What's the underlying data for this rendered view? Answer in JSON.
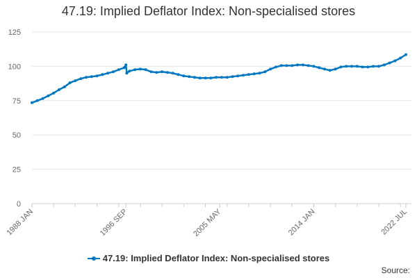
{
  "chart_data": {
    "type": "line",
    "title": "47.19: Implied Deflator Index: Non-specialised stores",
    "xlabel": "",
    "ylabel": "",
    "x_start": "1988 JAN",
    "x_end": "2022 JUL",
    "x_ticks": [
      "1988 JAN",
      "1996 SEP",
      "2005 MAY",
      "2014 JAN",
      "2022 JUL"
    ],
    "y_ticks": [
      0,
      25,
      50,
      75,
      100,
      125
    ],
    "ylim": [
      0,
      125
    ],
    "grid": true,
    "legend_position": "bottom",
    "series": [
      {
        "name": "47.19: Implied Deflator Index: Non-specialised stores",
        "color": "#0077c0",
        "x": [
          "1988 JAN",
          "1988 JUL",
          "1989 JAN",
          "1989 JUL",
          "1990 JAN",
          "1990 JUL",
          "1991 JAN",
          "1991 JUL",
          "1992 JAN",
          "1992 JUL",
          "1993 JAN",
          "1993 JUL",
          "1994 JAN",
          "1994 JUL",
          "1995 JAN",
          "1995 JUL",
          "1996 JAN",
          "1996 JUL",
          "1996 SEP",
          "1996 OCT",
          "1997 JAN",
          "1997 JUL",
          "1998 JAN",
          "1998 JUL",
          "1999 JAN",
          "1999 JUL",
          "2000 JAN",
          "2000 JUL",
          "2001 JAN",
          "2001 JUL",
          "2002 JAN",
          "2002 JUL",
          "2003 JAN",
          "2003 JUL",
          "2004 JAN",
          "2004 JUL",
          "2005 JAN",
          "2005 JUL",
          "2006 JAN",
          "2006 JUL",
          "2007 JAN",
          "2007 JUL",
          "2008 JAN",
          "2008 JUL",
          "2009 JAN",
          "2009 JUL",
          "2010 JAN",
          "2010 JUL",
          "2011 JAN",
          "2011 JUL",
          "2012 JAN",
          "2012 JUL",
          "2013 JAN",
          "2013 JUL",
          "2014 JAN",
          "2014 JUL",
          "2015 JAN",
          "2015 JUL",
          "2016 JAN",
          "2016 JUL",
          "2017 JAN",
          "2017 JUL",
          "2018 JAN",
          "2018 JUL",
          "2019 JAN",
          "2019 JUL",
          "2020 JAN",
          "2020 JUL",
          "2021 JAN",
          "2021 JUL",
          "2022 JAN",
          "2022 JUL"
        ],
        "values": [
          73.5,
          75,
          76.5,
          78.5,
          80.5,
          83,
          85,
          88,
          89.5,
          91,
          92,
          92.5,
          93,
          94,
          95,
          96,
          97.5,
          99,
          101,
          95,
          96.5,
          97.5,
          98,
          97.5,
          96,
          95.5,
          96,
          95.5,
          95,
          94,
          93,
          92.5,
          92,
          91.5,
          91.5,
          91.5,
          92,
          92,
          92,
          92.5,
          93,
          93.5,
          94,
          94.5,
          95,
          96,
          98,
          99.5,
          100.5,
          100.5,
          100.5,
          101,
          101,
          100.5,
          100,
          99,
          98,
          97,
          98,
          99.5,
          100,
          100,
          100,
          99.5,
          99.5,
          100,
          100,
          101,
          102.5,
          104,
          106,
          108.5
        ]
      }
    ]
  },
  "legend": {
    "label": "47.19: Implied Deflator Index: Non-specialised stores"
  },
  "footer": {
    "source_label": "Source:"
  }
}
